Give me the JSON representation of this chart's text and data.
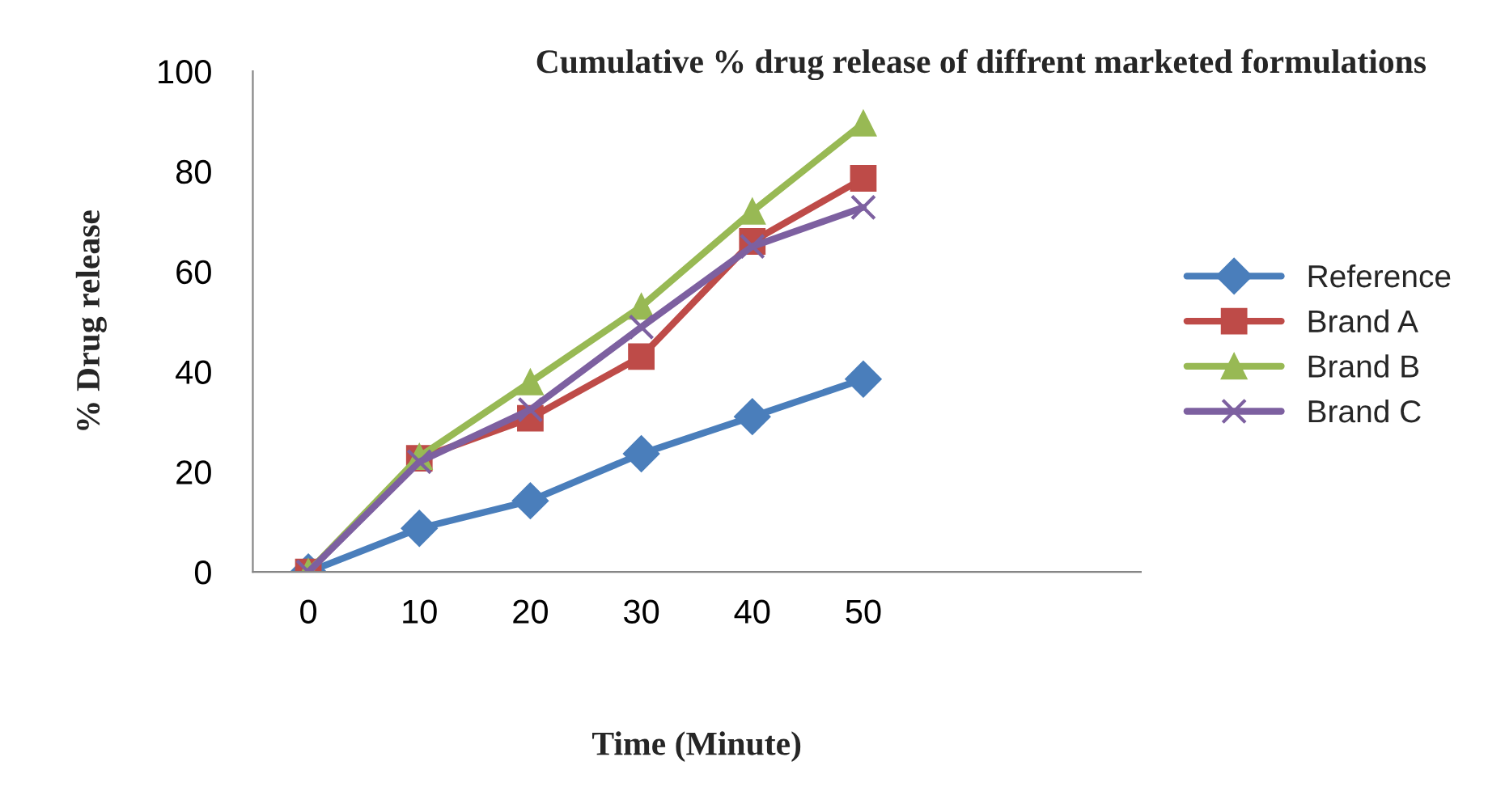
{
  "chart_data": {
    "type": "line",
    "title": "Cumulative % drug release of diffrent marketed formulations",
    "xlabel": "Time (Minute)",
    "ylabel": "% Drug release",
    "categories": [
      "0",
      "10",
      "20",
      "30",
      "40",
      "50",
      null,
      null
    ],
    "series": [
      {
        "name": "Reference",
        "color": "#4a7ebb",
        "marker": "diamond",
        "values": [
          0,
          8.7,
          14.2,
          23.6,
          31,
          38.5,
          null,
          null
        ]
      },
      {
        "name": "Brand A",
        "color": "#be4b48",
        "marker": "square",
        "values": [
          0,
          22.7,
          30.7,
          43,
          66,
          78.6,
          null,
          null
        ]
      },
      {
        "name": "Brand B",
        "color": "#98b954",
        "marker": "triangle",
        "values": [
          0,
          23,
          37.9,
          53,
          72,
          89.6,
          null,
          null
        ]
      },
      {
        "name": "Brand C",
        "color": "#7d60a0",
        "marker": "cross",
        "values": [
          0,
          22,
          32.4,
          48.9,
          65,
          72.8,
          null,
          null
        ]
      }
    ],
    "ylim": [
      0,
      100
    ],
    "yticks": [
      0,
      20,
      40,
      60,
      80,
      100
    ],
    "grid": false,
    "legend": "right"
  }
}
